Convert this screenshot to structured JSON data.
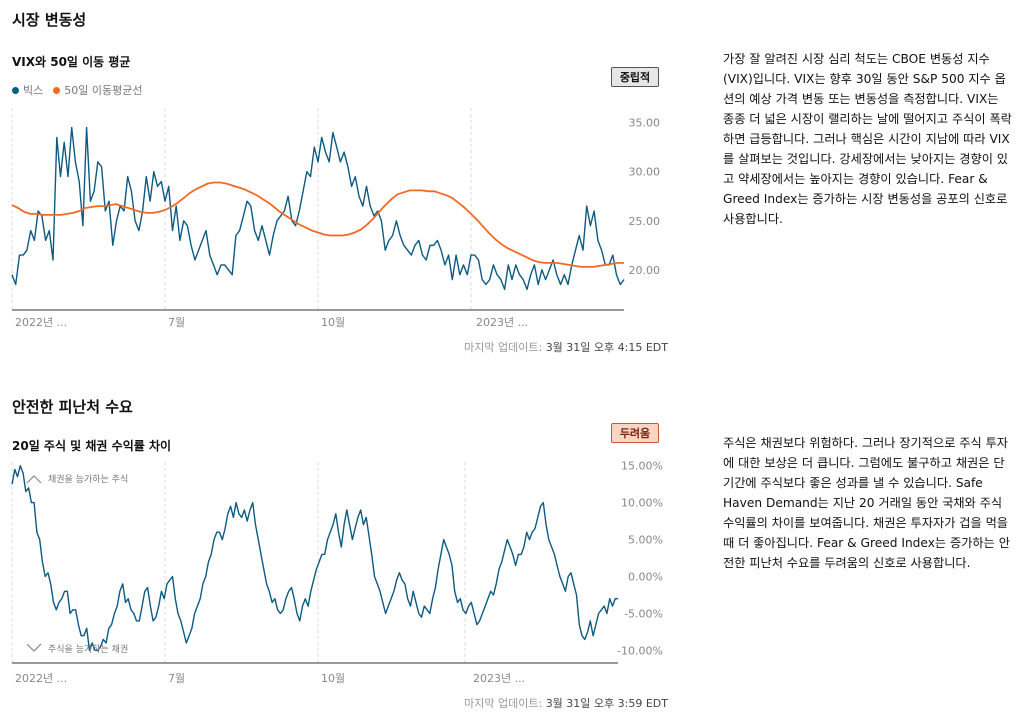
{
  "volatility": {
    "section_title": "시장 변동성",
    "chart_title": "VIX와 50일 이동 평균",
    "rating": "중립적",
    "legend": [
      {
        "label": "빅스",
        "color": "#0d5a82"
      },
      {
        "label": "50일 이동평균선",
        "color": "#f06a25"
      }
    ],
    "updated_label": "마지막 업데이트: ",
    "updated_value": "3월 31일 오후 4:15 EDT",
    "description": "가장 잘 알려진 시장 심리 척도는 CBOE 변동성 지수(VIX)입니다. VIX는 향후 30일 동안 S&P 500 지수 옵션의 예상 가격 변동 또는 변동성을 측정합니다. VIX는 종종 더 넓은 시장이 랠리하는 날에 떨어지고 주식이 폭락하면 급등합니다. 그러나 핵심은 시간이 지남에 따라 VIX를 살펴보는 것입니다. 강세장에서는 낮아지는 경향이 있고 약세장에서는 높아지는 경향이 있습니다. Fear & Greed Index는 증가하는 시장 변동성을 공포의 신호로 사용합니다."
  },
  "safe_haven": {
    "section_title": "안전한 피난처 수요",
    "chart_title": "20일 주식 및 채권 수익률 차이",
    "rating": "두려움",
    "updated_label": "마지막 업데이트: ",
    "updated_value": "3월 31일 오후 3:59 EDT",
    "description": "주식은 채권보다 위험하다. 그러나 장기적으로 주식 투자에 대한 보상은 더 큽니다. 그럼에도 불구하고 채권은 단기간에 주식보다 좋은 성과를 낼 수 있습니다. Safe Haven Demand는 지난 20 거래일 동안 국채와 주식 수익률의 차이를 보여줍니다. 채권은 투자자가 겁을 먹을 때 더 좋아집니다. Fear & Greed Index는 증가하는 안전한 피난처 수요를 두려움의 신호로 사용합니다."
  },
  "chart_data": [
    {
      "type": "line",
      "title": "VIX와 50일 이동 평균",
      "xlabel": "",
      "ylabel": "",
      "x_tick_labels": [
        "2022년 ...",
        "7월",
        "10월",
        "2023년 ..."
      ],
      "y_tick_labels": [
        "35.00",
        "30.00",
        "25.00",
        "20.00"
      ],
      "y_ticks": [
        35,
        30,
        25,
        20
      ],
      "ylim": [
        15.9,
        36.5
      ],
      "grid": true,
      "series": [
        {
          "name": "빅스",
          "color": "#0d5a82",
          "values": [
            19.5,
            18.5,
            21.5,
            21.5,
            22,
            24,
            23,
            26,
            25.5,
            23,
            24,
            21,
            33.5,
            29.5,
            33,
            29.5,
            34.5,
            31,
            29,
            24.5,
            34.5,
            27,
            28,
            31,
            30.5,
            26,
            27,
            22.5,
            25,
            26.5,
            26,
            29.5,
            28,
            25,
            24,
            26,
            29.5,
            27,
            30,
            28.5,
            29,
            27,
            28.5,
            24,
            26.5,
            23,
            25,
            24.5,
            22.5,
            21,
            22,
            23,
            24,
            21.5,
            20.5,
            19.5,
            20.5,
            20.5,
            20,
            19.5,
            23.5,
            24,
            25.5,
            27,
            26.5,
            24,
            23,
            24.5,
            23,
            21.5,
            23.5,
            25,
            25.5,
            26,
            27.5,
            25,
            24.5,
            26,
            28,
            30,
            29.5,
            32.5,
            31,
            33.5,
            32,
            31,
            34,
            32.5,
            31,
            32,
            30.5,
            28.5,
            29.5,
            27.5,
            26.5,
            28.5,
            26.5,
            25.5,
            26,
            25,
            22,
            23,
            23.5,
            25,
            23.5,
            22.5,
            22,
            21.5,
            22.5,
            23,
            21.5,
            21,
            22.5,
            22.5,
            23,
            22,
            20.5,
            21.5,
            19,
            21.5,
            19.5,
            20.5,
            19.5,
            21.5,
            21.5,
            21,
            19,
            18.5,
            19,
            20.5,
            19.5,
            19,
            18,
            20.5,
            19,
            20.5,
            19.5,
            19,
            18,
            19.5,
            20.5,
            18.5,
            20,
            19,
            20,
            21,
            19.5,
            18.5,
            19.5,
            18.5,
            20.5,
            22,
            23.5,
            22,
            26.5,
            24.5,
            26,
            23,
            22,
            20.5,
            20.5,
            21.5,
            19.5,
            18.5,
            19
          ]
        },
        {
          "name": "50일 이동평균선",
          "color": "#f06a25",
          "values": [
            26.6,
            26.3,
            25.9,
            25.7,
            25.7,
            25.6,
            25.6,
            25.6,
            25.6,
            25.7,
            25.8,
            26.0,
            26.3,
            26.4,
            26.5,
            26.5,
            26.6,
            26.7,
            26.5,
            26.3,
            26.1,
            25.9,
            25.8,
            25.8,
            25.9,
            26.1,
            26.4,
            26.8,
            27.3,
            27.8,
            28.2,
            28.5,
            28.8,
            28.9,
            28.9,
            28.8,
            28.6,
            28.4,
            28.2,
            27.9,
            27.6,
            27.2,
            26.8,
            26.3,
            25.8,
            25.4,
            25.0,
            24.6,
            24.3,
            24.0,
            23.8,
            23.6,
            23.5,
            23.5,
            23.5,
            23.6,
            23.8,
            24.1,
            24.6,
            25.2,
            25.9,
            26.6,
            27.2,
            27.7,
            27.9,
            28.1,
            28.1,
            28.1,
            28.0,
            28.0,
            27.8,
            27.6,
            27.3,
            26.8,
            26.3,
            25.7,
            25.1,
            24.4,
            23.7,
            23.1,
            22.6,
            22.2,
            21.9,
            21.6,
            21.3,
            21.0,
            20.8,
            20.7,
            20.7,
            20.7,
            20.6,
            20.5,
            20.4,
            20.3,
            20.3,
            20.3,
            20.4,
            20.5,
            20.6,
            20.7,
            20.7
          ]
        }
      ]
    },
    {
      "type": "line",
      "title": "20일 주식 및 채권 수익률 차이",
      "xlabel": "",
      "ylabel": "",
      "x_tick_labels": [
        "2022년 ...",
        "7월",
        "10월",
        "2023년 ..."
      ],
      "y_tick_labels": [
        "15.00%",
        "10.00%",
        "5.00%",
        "0.00%",
        "-5.00%",
        "-10.00%"
      ],
      "y_ticks": [
        15,
        10,
        5,
        0,
        -5,
        -10
      ],
      "ylim": [
        -11.7,
        15.5
      ],
      "grid": true,
      "annotations": [
        "채권을 능가하는 주식",
        "주식을 능가하는 채권"
      ],
      "series": [
        {
          "name": "20일 주식 및 채권 수익률 차이",
          "color": "#0d5a82",
          "values": [
            12.5,
            14.5,
            13.5,
            15,
            14,
            11.5,
            12,
            10,
            10,
            6,
            5,
            2,
            0,
            0.5,
            -1,
            -3.5,
            -4.5,
            -3.5,
            -3,
            -2,
            -2,
            -5,
            -4.5,
            -4.5,
            -6.5,
            -8,
            -8,
            -7,
            -10,
            -9,
            -10,
            -10,
            -9.5,
            -8.5,
            -9,
            -7,
            -6.5,
            -5,
            -4,
            -2,
            -1,
            -3.5,
            -3,
            -4.5,
            -5,
            -6,
            -6,
            -4,
            -2,
            -1.5,
            -4,
            -6,
            -5.5,
            -4,
            -2,
            -3,
            -1,
            -0.5,
            0,
            -3,
            -5,
            -6,
            -7.5,
            -9,
            -8,
            -7,
            -5,
            -4,
            -3,
            -1,
            0,
            2,
            3,
            5,
            6,
            6,
            5,
            6.5,
            8.5,
            9.5,
            8,
            10,
            8.5,
            8,
            9,
            7.5,
            9,
            10,
            7,
            5,
            3,
            1,
            -1,
            -2,
            -3.5,
            -3,
            -4.5,
            -5,
            -4.5,
            -3,
            -2,
            -1.5,
            -3,
            -5,
            -6,
            -4,
            -3,
            -4,
            -2,
            -0.5,
            1,
            2,
            3,
            3,
            5,
            6,
            7,
            8.5,
            6,
            4,
            7,
            9,
            7,
            5,
            6.5,
            8,
            9,
            7,
            8,
            5.5,
            3,
            0,
            -1,
            -2,
            -3.5,
            -5,
            -4,
            -3,
            -2,
            -0.5,
            0.5,
            -0.5,
            -1,
            -3,
            -4,
            -2,
            -3.5,
            -5,
            -5.5,
            -4,
            -4.5,
            -5,
            -3,
            -1.5,
            1,
            3,
            5,
            4,
            3,
            1.5,
            -2,
            -3.5,
            -3,
            -4.5,
            -5,
            -4,
            -3.5,
            -5,
            -6.5,
            -6,
            -5,
            -4,
            -3,
            -2,
            -2.5,
            -1,
            1,
            2,
            3.5,
            5,
            4,
            3,
            1.5,
            3,
            3,
            4,
            6,
            5,
            6,
            6.5,
            8,
            9.5,
            10,
            7,
            5,
            4,
            3,
            1.5,
            0,
            -1,
            -2,
            0,
            0.5,
            -1,
            -2.5,
            -6.5,
            -8,
            -8.5,
            -7.5,
            -6,
            -8,
            -6.5,
            -5,
            -4.5,
            -4,
            -5,
            -3,
            -4,
            -3,
            -3
          ]
        }
      ]
    }
  ]
}
